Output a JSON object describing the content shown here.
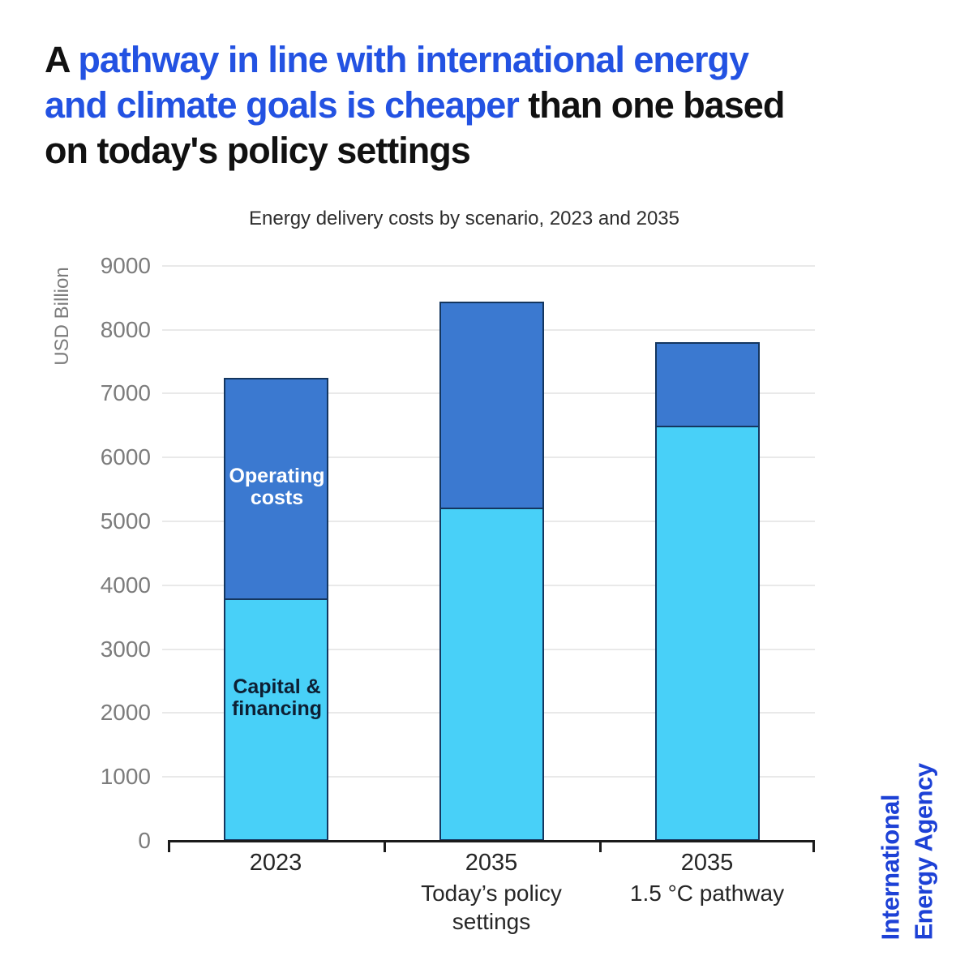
{
  "colors": {
    "text_dark": "#111111",
    "accent_blue": "#2352e2",
    "logo_blue": "#1d41d6",
    "bar_blue": "#3b79d0",
    "bar_cyan": "#48d0f8",
    "bar_outline": "#14365f",
    "gridline": "#e9e9e9",
    "axis_black": "#1b1b1b",
    "tick_gray": "#7c7c7c"
  },
  "title": {
    "lines": [
      [
        {
          "t": "A ",
          "c": "dark"
        },
        {
          "t": "pathway in line with international energy",
          "c": "accent"
        }
      ],
      [
        {
          "t": "and climate goals is cheaper",
          "c": "accent"
        },
        {
          "t": " than one based",
          "c": "dark"
        }
      ],
      [
        {
          "t": "on today's policy settings",
          "c": "dark"
        }
      ]
    ],
    "full_text": "A pathway in line with international energy and climate goals is cheaper than one based on today's policy settings"
  },
  "logo": {
    "text": "International\nEnergy Agency"
  },
  "chart_data": {
    "type": "bar",
    "stacked": true,
    "title": "Energy delivery costs by scenario, 2023 and 2035",
    "ylabel": "USD Billion",
    "ylim": [
      0,
      9000
    ],
    "ytick_step": 1000,
    "grid": "horizontal",
    "legend_position": "labels-inside-first-bar",
    "categories": [
      {
        "year": "2023",
        "sublabel": ""
      },
      {
        "year": "2035",
        "sublabel": "Today’s policy\nsettings"
      },
      {
        "year": "2035",
        "sublabel": "1.5 °C pathway"
      }
    ],
    "series": [
      {
        "name": "Capital & financing",
        "display_label": "Capital &\nfinancing",
        "color": "#48d0f8",
        "values": [
          3800,
          5220,
          6500
        ]
      },
      {
        "name": "Operating costs",
        "display_label": "Operating\ncosts",
        "color": "#3b79d0",
        "values": [
          3450,
          3220,
          1300
        ]
      }
    ],
    "totals": [
      7250,
      8440,
      7800
    ]
  }
}
